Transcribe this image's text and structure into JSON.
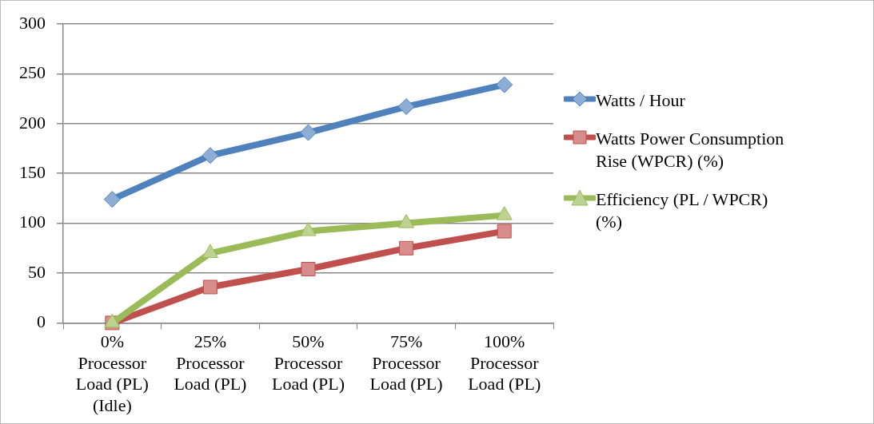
{
  "chart_data": {
    "type": "line",
    "categories": [
      "0%\nProcessor\nLoad (PL)\n(Idle)",
      "25%\nProcessor\nLoad (PL)",
      "50%\nProcessor\nLoad (PL)",
      "75%\nProcessor\nLoad (PL)",
      "100%\nProcessor\nLoad (PL)"
    ],
    "series": [
      {
        "name": "Watts / Hour",
        "color": "#4f81bd",
        "marker": "diamond",
        "values": [
          124,
          168,
          191,
          217,
          239
        ]
      },
      {
        "name": "Watts Power Consumption Rise (WPCR) (%)",
        "color": "#c0504d",
        "marker": "square",
        "values": [
          0,
          36,
          54,
          75,
          92
        ]
      },
      {
        "name": "Efficiency (PL / WPCR) (%)",
        "color": "#9bbb59",
        "marker": "triangle",
        "values": [
          0,
          70,
          92,
          100,
          108
        ]
      }
    ],
    "ylim": [
      0,
      300
    ],
    "yticks": [
      0,
      50,
      100,
      150,
      200,
      250,
      300
    ],
    "grid": "y",
    "legend": "right"
  }
}
